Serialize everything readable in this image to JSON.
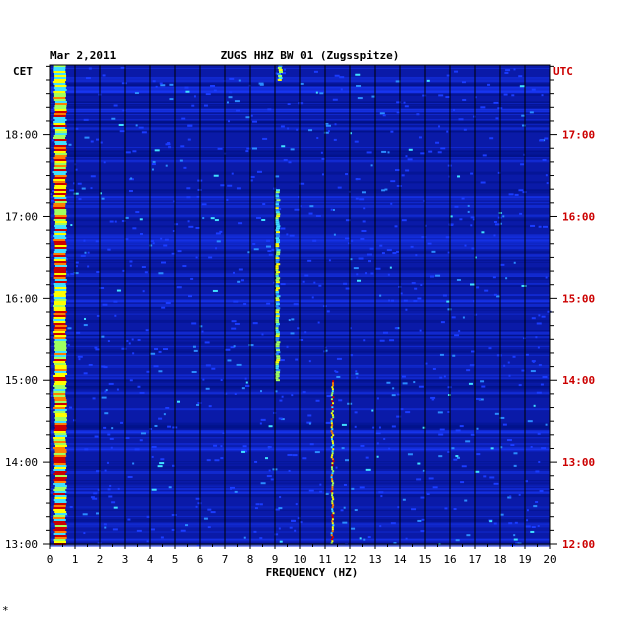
{
  "header": {
    "date": "Mar 2,2011",
    "station": "ZUGS HHZ BW 01 (Zugsspitze)",
    "left_zone": "CET",
    "right_zone": "UTC"
  },
  "footer_mark": "*",
  "colors": {
    "background": "#0a1aa8",
    "left_axis_text": "#000000",
    "right_axis_text": "#cc0000",
    "grid_line": "#000000",
    "colormap": [
      "#001080",
      "#0a1aa8",
      "#1a3cff",
      "#2a8cff",
      "#40e0ff",
      "#a0ff60",
      "#ffff00",
      "#ff8000",
      "#cc0000"
    ]
  },
  "chart_data": {
    "type": "heatmap",
    "title": "ZUGS HHZ BW 01 (Zugsspitze)",
    "date": "Mar 2,2011",
    "xlabel": "FREQUENCY (HZ)",
    "xlim": [
      0,
      20
    ],
    "x_ticks": [
      "0",
      "1",
      "2",
      "3",
      "4",
      "5",
      "6",
      "7",
      "8",
      "9",
      "10",
      "11",
      "12",
      "13",
      "14",
      "15",
      "16",
      "17",
      "18",
      "19",
      "20"
    ],
    "y_left_label": "CET",
    "y_left_ticks": [
      "18:00",
      "17:00",
      "16:00",
      "15:00",
      "14:00",
      "13:00"
    ],
    "y_right_label": "UTC",
    "y_right_ticks": [
      "17:00",
      "16:00",
      "15:00",
      "14:00",
      "13:00",
      "12:00"
    ],
    "ylim_cet": [
      "13:00",
      "18:51"
    ],
    "gridlines": "vertical at every 1 Hz",
    "features": [
      {
        "freq_hz": 0.4,
        "from": "13:00",
        "to": "18:51",
        "level": "high"
      },
      {
        "freq_hz": 9.1,
        "from": "15:00",
        "to": "17:20",
        "level": "medium"
      },
      {
        "freq_hz": 11.3,
        "from": "13:00",
        "to": "15:00",
        "level": "high"
      },
      {
        "freq_hz": 9.2,
        "from": "18:40",
        "to": "18:51",
        "level": "medium"
      }
    ]
  }
}
